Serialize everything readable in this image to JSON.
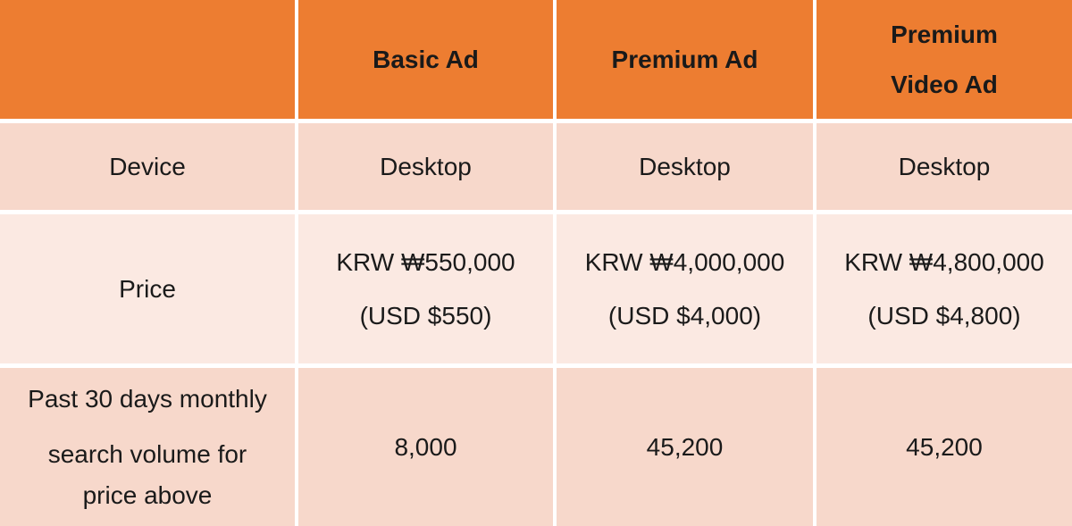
{
  "colors": {
    "header_bg": "#ED7D31",
    "row_alt_bg": "#F7D8CB",
    "row_light_bg": "#FBE9E2",
    "divider": "#FFFFFF",
    "text": "#1A1A1A"
  },
  "header": {
    "blank": "",
    "basic": "Basic Ad",
    "premium": "Premium Ad",
    "premium_video": {
      "line1": "Premium",
      "line2": "Video Ad"
    }
  },
  "rows": {
    "device": {
      "label": "Device",
      "basic": "Desktop",
      "premium": "Desktop",
      "premium_video": "Desktop"
    },
    "price": {
      "label": "Price",
      "basic": {
        "krw": "KRW ₩550,000",
        "usd": "(USD $550)"
      },
      "premium": {
        "krw": "KRW ₩4,000,000",
        "usd": "(USD $4,000)"
      },
      "premium_video": {
        "krw": "KRW ₩4,800,000",
        "usd": "(USD $4,800)"
      }
    },
    "search_volume": {
      "label": {
        "line1": "Past 30 days monthly",
        "line2": "search volume for",
        "line3": "price above"
      },
      "basic": "8,000",
      "premium": "45,200",
      "premium_video": "45,200"
    }
  }
}
